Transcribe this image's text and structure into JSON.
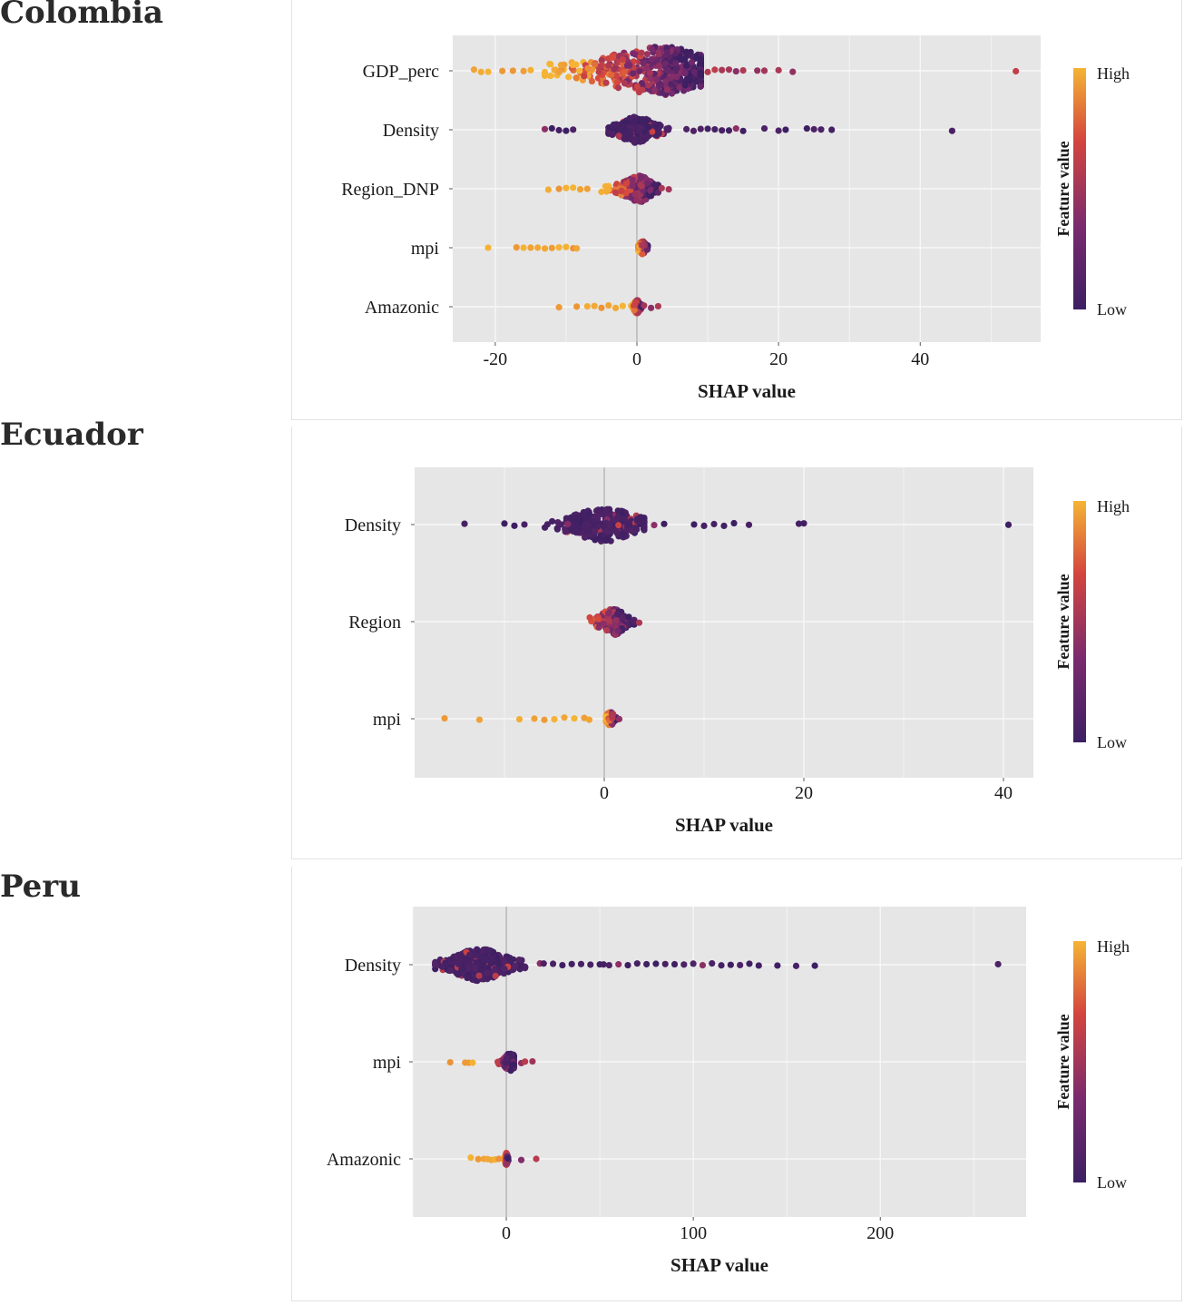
{
  "figures": [
    {
      "country": "Colombia"
    },
    {
      "country": "Ecuador"
    },
    {
      "country": "Peru"
    }
  ],
  "legend": {
    "title": "Feature value",
    "high": "High",
    "low": "Low"
  },
  "colors": {
    "low": "#3d1f63",
    "mid": "#7b2a6e",
    "midhigh": "#d4453e",
    "high": "#f5b435",
    "panel_bg": "#e6e6e6",
    "grid": "#f7f7f7",
    "zero_line": "#9a9a9a"
  },
  "chart_data": [
    {
      "type": "scatter",
      "subtype": "shap-beeswarm",
      "title": "Colombia",
      "xlabel": "SHAP value",
      "xlim": [
        -26,
        57
      ],
      "x_ticks": [
        -20,
        0,
        20,
        40
      ],
      "x_tick_labels": [
        "-20",
        "0",
        "20",
        "40"
      ],
      "legend": "right",
      "features": [
        {
          "name": "GDP_perc",
          "core_min": -13,
          "core_max": 9,
          "peak": 4,
          "spread_left": 9,
          "spread_right": 6,
          "outliers": [
            -23,
            -22,
            -21,
            -19,
            -17.5,
            -16,
            -15,
            10,
            11,
            12,
            13,
            14,
            15,
            17,
            18,
            20,
            22,
            53.5
          ],
          "color_trend": "high-left"
        },
        {
          "name": "Density",
          "core_min": -4,
          "core_max": 5,
          "peak": 0,
          "spread_left": 2.5,
          "spread_right": 2.5,
          "outliers": [
            -13,
            -12,
            -11,
            -10,
            -9,
            7,
            8,
            9,
            10,
            11,
            12,
            13,
            14,
            15,
            18,
            20,
            21,
            24,
            25,
            26,
            27.5,
            44.5
          ],
          "color_trend": "low"
        },
        {
          "name": "Region_DNP",
          "core_min": -6,
          "core_max": 3,
          "peak": 0.5,
          "spread_left": 2.5,
          "spread_right": 1.5,
          "outliers": [
            -12.5,
            -11,
            -10,
            -9,
            -8,
            -7,
            3.5,
            4.5
          ],
          "color_trend": "high-left"
        },
        {
          "name": "mpi",
          "core_min": 0.2,
          "core_max": 1.5,
          "peak": 0.8,
          "spread_left": 0.5,
          "spread_right": 0.5,
          "outliers": [
            -21,
            -17,
            -16,
            -15,
            -14,
            -13,
            -12,
            -11,
            -10,
            -9,
            -8.5
          ],
          "color_trend": "high-left"
        },
        {
          "name": "Amazonic",
          "core_min": -0.8,
          "core_max": 0.8,
          "peak": 0,
          "spread_left": 0.4,
          "spread_right": 0.4,
          "outliers": [
            -11,
            -8.5,
            -7,
            -6,
            -5,
            -4,
            -3,
            -2,
            1,
            2,
            3
          ],
          "color_trend": "high-left"
        }
      ]
    },
    {
      "type": "scatter",
      "subtype": "shap-beeswarm",
      "title": "Ecuador",
      "xlabel": "SHAP value",
      "xlim": [
        -19,
        43
      ],
      "x_ticks": [
        0,
        20,
        40
      ],
      "x_tick_labels": [
        "0",
        "20",
        "40"
      ],
      "legend": "right",
      "features": [
        {
          "name": "Density",
          "core_min": -6,
          "core_max": 4,
          "peak": 0,
          "spread_left": 3,
          "spread_right": 3,
          "outliers": [
            -14,
            -10,
            -9,
            -8,
            5,
            6,
            9,
            10,
            11,
            12,
            13,
            14.5,
            19.5,
            20,
            40.5
          ],
          "color_trend": "low"
        },
        {
          "name": "Region",
          "core_min": -3.5,
          "core_max": 3,
          "peak": 1,
          "spread_left": 1.5,
          "spread_right": 1,
          "outliers": [
            3.5
          ],
          "color_trend": "high-left"
        },
        {
          "name": "mpi",
          "core_min": 0.2,
          "core_max": 1.2,
          "peak": 0.6,
          "spread_left": 0.4,
          "spread_right": 0.4,
          "outliers": [
            -16,
            -12.5,
            -8.5,
            -7,
            -6,
            -5,
            -4,
            -3,
            -2,
            -1.5,
            1.5
          ],
          "color_trend": "high-left"
        }
      ]
    },
    {
      "type": "scatter",
      "subtype": "shap-beeswarm",
      "title": "Peru",
      "xlabel": "SHAP value",
      "xlim": [
        -50,
        278
      ],
      "x_ticks": [
        0,
        100,
        200
      ],
      "x_tick_labels": [
        "0",
        "100",
        "200"
      ],
      "legend": "right",
      "features": [
        {
          "name": "Density",
          "core_min": -38,
          "core_max": 10,
          "peak": -15,
          "spread_left": 12,
          "spread_right": 14,
          "outliers": [
            18,
            20,
            25,
            30,
            35,
            40,
            45,
            50,
            52,
            55,
            60,
            65,
            70,
            75,
            80,
            85,
            90,
            95,
            100,
            105,
            110,
            115,
            120,
            125,
            130,
            135,
            145,
            155,
            165,
            263
          ],
          "color_trend": "low"
        },
        {
          "name": "mpi",
          "core_min": -12,
          "core_max": 4,
          "peak": 2,
          "spread_left": 3,
          "spread_right": 3,
          "outliers": [
            -30,
            -22,
            -20,
            -18,
            8,
            10,
            14
          ],
          "color_trend": "high-left"
        },
        {
          "name": "Amazonic",
          "core_min": -1,
          "core_max": 1,
          "peak": 0,
          "spread_left": 0.6,
          "spread_right": 0.6,
          "outliers": [
            -19,
            -15,
            -12,
            -10,
            -8,
            -6,
            -4,
            8,
            16
          ],
          "color_trend": "high-left"
        }
      ]
    }
  ]
}
